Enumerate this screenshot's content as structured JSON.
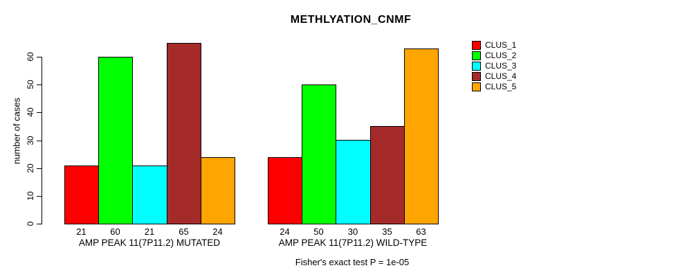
{
  "chart_data": {
    "type": "bar",
    "title": "METHLYATION_CNMF",
    "ylabel": "number of cases",
    "xlabel": "",
    "ylim": [
      0,
      65
    ],
    "yticks": [
      0,
      10,
      20,
      30,
      40,
      50,
      60
    ],
    "grid": false,
    "legend_position": "right",
    "categories": [
      "AMP PEAK 11(7P11.2) MUTATED",
      "AMP PEAK 11(7P11.2) WILD-TYPE"
    ],
    "series": [
      {
        "name": "CLUS_1",
        "color": "#FF0000",
        "values": [
          21,
          24
        ]
      },
      {
        "name": "CLUS_2",
        "color": "#00FF00",
        "values": [
          60,
          50
        ]
      },
      {
        "name": "CLUS_3",
        "color": "#00FFFF",
        "values": [
          21,
          30
        ]
      },
      {
        "name": "CLUS_4",
        "color": "#A52A2A",
        "values": [
          65,
          35
        ]
      },
      {
        "name": "CLUS_5",
        "color": "#FFA500",
        "values": [
          24,
          63
        ]
      }
    ],
    "bar_value_labels": [
      [
        21,
        60,
        21,
        65,
        24
      ],
      [
        24,
        50,
        30,
        35,
        63
      ]
    ],
    "annotation": "Fisher's exact test P = 1e-05"
  }
}
